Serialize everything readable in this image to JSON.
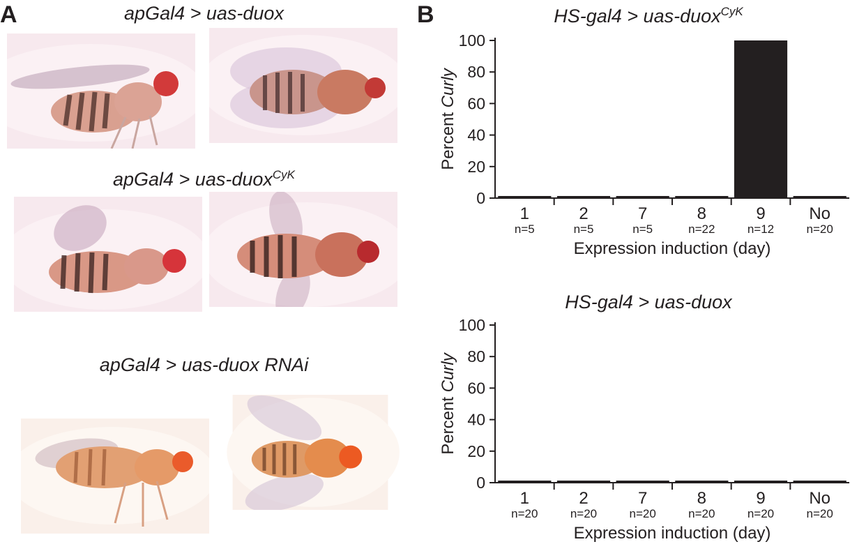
{
  "panel_a": {
    "letter": "A",
    "rows": [
      {
        "genotype": "apGal4 > uas-duox",
        "superscript": ""
      },
      {
        "genotype": "apGal4 > uas-duox",
        "superscript": "CyK"
      },
      {
        "genotype": "apGal4 > uas-duox RNAi",
        "superscript": ""
      }
    ]
  },
  "panel_b": {
    "letter": "B"
  },
  "chart_data": [
    {
      "type": "bar",
      "title": "HS-gal4 > uas-duox",
      "title_superscript": "CyK",
      "xlabel": "Expression induction (day)",
      "ylabel_prefix": "Percent ",
      "ylabel_italic": "Curly",
      "categories": [
        "1",
        "2",
        "7",
        "8",
        "9",
        "No"
      ],
      "n_labels": [
        "n=5",
        "n=5",
        "n=5",
        "n=22",
        "n=12",
        "n=20"
      ],
      "values": [
        0,
        0,
        0,
        0,
        100,
        0
      ],
      "ylim": [
        0,
        100
      ],
      "yticks": [
        "0",
        "20",
        "40",
        "60",
        "80",
        "100"
      ],
      "bar_color": "#231f20"
    },
    {
      "type": "bar",
      "title": "HS-gal4 > uas-duox",
      "title_superscript": "",
      "xlabel": "Expression induction (day)",
      "ylabel_prefix": "Percent ",
      "ylabel_italic": "Curly",
      "categories": [
        "1",
        "2",
        "7",
        "8",
        "9",
        "No"
      ],
      "n_labels": [
        "n=20",
        "n=20",
        "n=20",
        "n=20",
        "n=20",
        "n=20"
      ],
      "values": [
        0,
        0,
        0,
        0,
        0,
        0
      ],
      "ylim": [
        0,
        100
      ],
      "yticks": [
        "0",
        "20",
        "40",
        "60",
        "80",
        "100"
      ],
      "bar_color": "#231f20"
    }
  ]
}
